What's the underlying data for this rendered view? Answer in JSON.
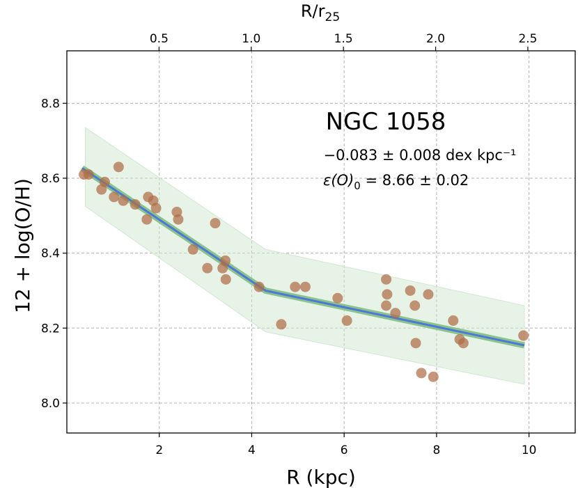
{
  "chart_data": {
    "type": "scatter",
    "title": "NGC 1058",
    "xlabel": "R (kpc)",
    "ylabel": "12 + log(O/H)",
    "top_xlabel_base": "R/r",
    "top_xlabel_sub": "25",
    "xlim": [
      0,
      11
    ],
    "ylim": [
      7.92,
      8.94
    ],
    "x_ticks": [
      2,
      4,
      6,
      8,
      10
    ],
    "x_tick_labels": [
      "2",
      "4",
      "6",
      "8",
      "10"
    ],
    "y_ticks": [
      8.0,
      8.2,
      8.4,
      8.6,
      8.8
    ],
    "y_tick_labels": [
      "8.0",
      "8.2",
      "8.4",
      "8.6",
      "8.8"
    ],
    "top_ticks": [
      0.5,
      1.0,
      1.5,
      2.0,
      2.5
    ],
    "top_tick_labels": [
      "0.5",
      "1.0",
      "1.5",
      "2.0",
      "2.5"
    ],
    "r25_kpc": 3.99,
    "grid": true,
    "gradient_text": "−0.083 ± 0.008 dex kpc⁻¹",
    "eps_symbol": "ε(O)",
    "eps_sub": "0",
    "eps_value": " = 8.66 ± 0.02",
    "points": [
      {
        "x": 0.37,
        "y": 8.61
      },
      {
        "x": 0.47,
        "y": 8.61
      },
      {
        "x": 0.75,
        "y": 8.57
      },
      {
        "x": 0.82,
        "y": 8.59
      },
      {
        "x": 1.02,
        "y": 8.55
      },
      {
        "x": 1.12,
        "y": 8.63
      },
      {
        "x": 1.22,
        "y": 8.54
      },
      {
        "x": 1.48,
        "y": 8.53
      },
      {
        "x": 1.73,
        "y": 8.49
      },
      {
        "x": 1.76,
        "y": 8.55
      },
      {
        "x": 1.87,
        "y": 8.54
      },
      {
        "x": 1.93,
        "y": 8.52
      },
      {
        "x": 2.38,
        "y": 8.51
      },
      {
        "x": 2.41,
        "y": 8.49
      },
      {
        "x": 2.73,
        "y": 8.41
      },
      {
        "x": 3.04,
        "y": 8.36
      },
      {
        "x": 3.21,
        "y": 8.48
      },
      {
        "x": 3.37,
        "y": 8.36
      },
      {
        "x": 3.43,
        "y": 8.38
      },
      {
        "x": 3.44,
        "y": 8.33
      },
      {
        "x": 4.16,
        "y": 8.31
      },
      {
        "x": 4.64,
        "y": 8.21
      },
      {
        "x": 4.94,
        "y": 8.31
      },
      {
        "x": 5.16,
        "y": 8.31
      },
      {
        "x": 5.86,
        "y": 8.28
      },
      {
        "x": 6.06,
        "y": 8.22
      },
      {
        "x": 6.91,
        "y": 8.33
      },
      {
        "x": 6.93,
        "y": 8.29
      },
      {
        "x": 6.91,
        "y": 8.26
      },
      {
        "x": 7.11,
        "y": 8.24
      },
      {
        "x": 7.43,
        "y": 8.3
      },
      {
        "x": 7.53,
        "y": 8.26
      },
      {
        "x": 7.55,
        "y": 8.16
      },
      {
        "x": 7.67,
        "y": 8.08
      },
      {
        "x": 7.82,
        "y": 8.29
      },
      {
        "x": 7.93,
        "y": 8.07
      },
      {
        "x": 8.36,
        "y": 8.22
      },
      {
        "x": 8.5,
        "y": 8.17
      },
      {
        "x": 8.58,
        "y": 8.16
      },
      {
        "x": 9.88,
        "y": 8.18
      }
    ],
    "fit_line": [
      {
        "x": 0.33,
        "y": 8.627
      },
      {
        "x": 4.3,
        "y": 8.3
      },
      {
        "x": 9.9,
        "y": 8.154
      }
    ],
    "band_upper": [
      {
        "x": 0.4,
        "y": 8.735
      },
      {
        "x": 4.3,
        "y": 8.41
      },
      {
        "x": 9.9,
        "y": 8.26
      }
    ],
    "band_lower": [
      {
        "x": 0.4,
        "y": 8.525
      },
      {
        "x": 4.3,
        "y": 8.19
      },
      {
        "x": 9.9,
        "y": 8.05
      }
    ],
    "colors": {
      "points": "#b06c47",
      "fit": "#4f76db",
      "fit_halo": "#7fbf7f",
      "band": "#cfe8cf"
    }
  }
}
